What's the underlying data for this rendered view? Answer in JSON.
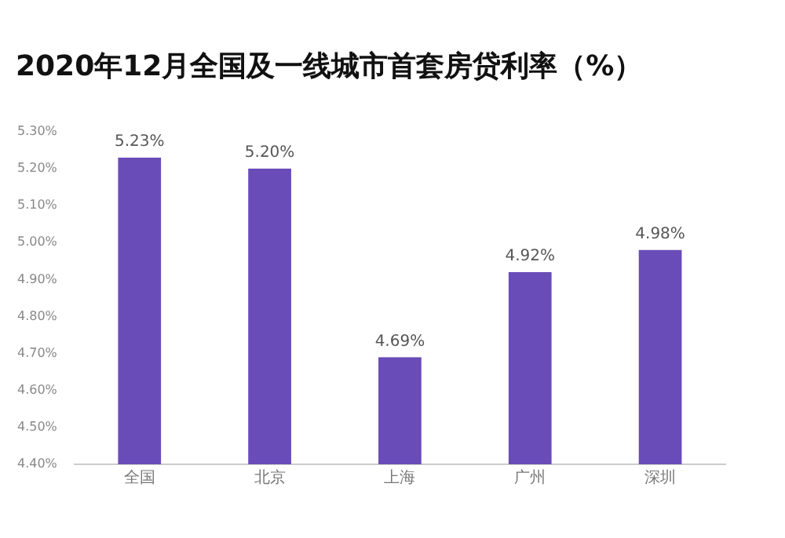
{
  "chart_data": {
    "type": "bar",
    "title": "2020年12月全国及一线城市首套房贷利率（%）",
    "categories": [
      "全国",
      "北京",
      "上海",
      "广州",
      "深圳"
    ],
    "values": [
      5.23,
      5.2,
      4.69,
      4.92,
      4.98
    ],
    "value_labels": [
      "5.23%",
      "5.20%",
      "4.69%",
      "4.92%",
      "4.98%"
    ],
    "color": "#6a4cb8",
    "ylim": [
      4.4,
      5.3
    ],
    "yticks": [
      {
        "value": 4.4,
        "label": "4.40%"
      },
      {
        "value": 4.5,
        "label": "4.50%"
      },
      {
        "value": 4.6,
        "label": "4.60%"
      },
      {
        "value": 4.7,
        "label": "4.70%"
      },
      {
        "value": 4.8,
        "label": "4.80%"
      },
      {
        "value": 4.9,
        "label": "4.90%"
      },
      {
        "value": 5.0,
        "label": "5.00%"
      },
      {
        "value": 5.1,
        "label": "5.10%"
      },
      {
        "value": 5.2,
        "label": "5.20%"
      },
      {
        "value": 5.3,
        "label": "5.30%"
      }
    ],
    "grid": false,
    "legend": false
  }
}
